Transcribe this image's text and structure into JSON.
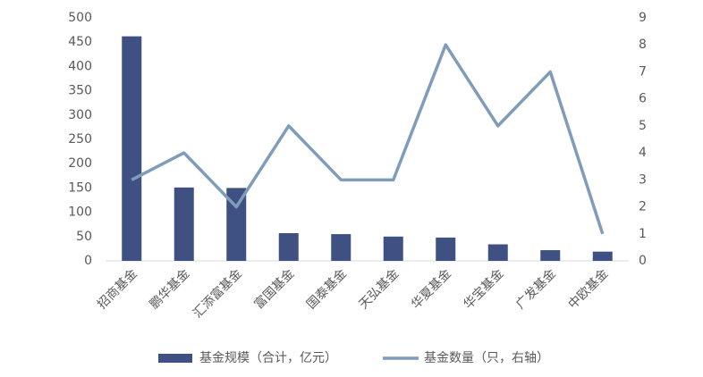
{
  "chart_data": {
    "type": "bar",
    "categories": [
      "招商基金",
      "鹏华基金",
      "汇添富基金",
      "富国基金",
      "国泰基金",
      "天弘基金",
      "华夏基金",
      "华宝基金",
      "广发基金",
      "中欧基金"
    ],
    "series": [
      {
        "name": "基金规模（合计，亿元）",
        "type": "bar",
        "color": "#3f5082",
        "values": [
          462,
          151,
          150,
          57,
          55,
          50,
          48,
          34,
          22,
          19
        ]
      },
      {
        "name": "基金数量（只，右轴）",
        "type": "line",
        "axis": "y2",
        "color": "#7f9cba",
        "values": [
          3,
          4,
          2,
          5,
          3,
          3,
          8,
          5,
          7,
          1
        ]
      }
    ],
    "ylim": [
      0,
      500
    ],
    "yticks": [
      0,
      50,
      100,
      150,
      200,
      250,
      300,
      350,
      400,
      450,
      500
    ],
    "y2lim": [
      0,
      9
    ],
    "y2ticks": [
      0,
      1,
      2,
      3,
      4,
      5,
      6,
      7,
      8,
      9
    ],
    "grid": false,
    "legend": "bottom"
  }
}
